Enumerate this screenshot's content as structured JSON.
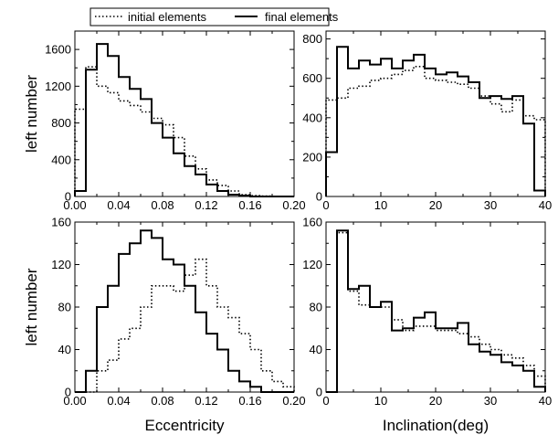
{
  "legend": {
    "initial_label": "initial elements",
    "final_label": "final elements"
  },
  "chart_data": [
    {
      "type": "histogram",
      "panel": "top-left",
      "xlabel": "",
      "ylabel": "left number",
      "xlim": [
        0,
        0.2
      ],
      "ylim": [
        0,
        1800
      ],
      "xticks": [
        0.0,
        0.04,
        0.08,
        0.12,
        0.16,
        0.2
      ],
      "xtick_labels": [
        "0.00",
        "0.04",
        "0.08",
        "0.12",
        "0.16",
        "0.20"
      ],
      "yticks": [
        0,
        400,
        800,
        1200,
        1600
      ],
      "yticks_minor": [
        200,
        600,
        1000,
        1400
      ],
      "bin_edges": [
        0,
        0.01,
        0.02,
        0.03,
        0.04,
        0.05,
        0.06,
        0.07,
        0.08,
        0.09,
        0.1,
        0.11,
        0.12,
        0.13,
        0.14,
        0.15,
        0.16,
        0.17,
        0.18,
        0.19,
        0.2
      ],
      "series": [
        {
          "name": "initial elements",
          "values": [
            950,
            1410,
            1200,
            1130,
            1040,
            990,
            920,
            850,
            780,
            640,
            440,
            300,
            180,
            120,
            60,
            20,
            10,
            5,
            0,
            0
          ]
        },
        {
          "name": "final elements",
          "values": [
            60,
            1380,
            1660,
            1530,
            1300,
            1170,
            1060,
            800,
            640,
            470,
            330,
            240,
            130,
            60,
            20,
            10,
            0,
            0,
            0,
            0
          ]
        }
      ]
    },
    {
      "type": "histogram",
      "panel": "top-right",
      "xlabel": "",
      "ylabel": "",
      "xlim": [
        0,
        40
      ],
      "ylim": [
        0,
        840
      ],
      "xticks": [
        0,
        10,
        20,
        30,
        40
      ],
      "xtick_labels": [
        "0",
        "10",
        "20",
        "30",
        "40"
      ],
      "yticks": [
        0,
        200,
        400,
        600,
        800
      ],
      "yticks_minor": [
        100,
        300,
        500,
        700
      ],
      "bin_edges": [
        0,
        2,
        4,
        6,
        8,
        10,
        12,
        14,
        16,
        18,
        20,
        22,
        24,
        26,
        28,
        30,
        32,
        34,
        36,
        38,
        40
      ],
      "series": [
        {
          "name": "initial elements",
          "values": [
            490,
            500,
            550,
            560,
            590,
            600,
            620,
            640,
            660,
            600,
            590,
            580,
            570,
            550,
            510,
            470,
            430,
            490,
            410,
            390
          ]
        },
        {
          "name": "final elements",
          "values": [
            225,
            760,
            650,
            690,
            670,
            700,
            650,
            690,
            720,
            650,
            620,
            630,
            610,
            580,
            500,
            510,
            495,
            510,
            370,
            30
          ]
        }
      ]
    },
    {
      "type": "histogram",
      "panel": "bottom-left",
      "xlabel": "Eccentricity",
      "ylabel": "left number",
      "xlim": [
        0,
        0.2
      ],
      "ylim": [
        0,
        160
      ],
      "xticks": [
        0.0,
        0.04,
        0.08,
        0.12,
        0.16,
        0.2
      ],
      "xtick_labels": [
        "0.00",
        "0.04",
        "0.08",
        "0.12",
        "0.16",
        "0.20"
      ],
      "yticks": [
        0,
        40,
        80,
        120,
        160
      ],
      "yticks_minor": [
        20,
        60,
        100,
        140
      ],
      "bin_edges": [
        0,
        0.01,
        0.02,
        0.03,
        0.04,
        0.05,
        0.06,
        0.07,
        0.08,
        0.09,
        0.1,
        0.11,
        0.12,
        0.13,
        0.14,
        0.15,
        0.16,
        0.17,
        0.18,
        0.19,
        0.2
      ],
      "series": [
        {
          "name": "initial elements",
          "values": [
            0,
            0,
            20,
            30,
            50,
            60,
            80,
            100,
            100,
            95,
            110,
            125,
            100,
            80,
            70,
            55,
            40,
            20,
            10,
            5
          ]
        },
        {
          "name": "final elements",
          "values": [
            0,
            20,
            80,
            100,
            130,
            140,
            152,
            145,
            125,
            120,
            100,
            75,
            55,
            40,
            20,
            10,
            5,
            0,
            0,
            0
          ]
        }
      ]
    },
    {
      "type": "histogram",
      "panel": "bottom-right",
      "xlabel": "Inclination(deg)",
      "ylabel": "",
      "xlim": [
        0,
        40
      ],
      "ylim": [
        0,
        160
      ],
      "xticks": [
        0,
        10,
        20,
        30,
        40
      ],
      "xtick_labels": [
        "0",
        "10",
        "20",
        "30",
        "40"
      ],
      "yticks": [
        0,
        40,
        80,
        120,
        160
      ],
      "yticks_minor": [
        20,
        60,
        100,
        140
      ],
      "bin_edges": [
        0,
        2,
        4,
        6,
        8,
        10,
        12,
        14,
        16,
        18,
        20,
        22,
        24,
        26,
        28,
        30,
        32,
        34,
        36,
        38,
        40
      ],
      "series": [
        {
          "name": "initial elements",
          "values": [
            0,
            150,
            95,
            82,
            80,
            80,
            68,
            58,
            62,
            62,
            58,
            58,
            55,
            52,
            45,
            40,
            35,
            32,
            25,
            15
          ]
        },
        {
          "name": "final elements",
          "values": [
            0,
            152,
            97,
            100,
            80,
            85,
            58,
            60,
            70,
            75,
            60,
            60,
            65,
            45,
            38,
            35,
            28,
            25,
            20,
            5
          ]
        }
      ]
    }
  ]
}
